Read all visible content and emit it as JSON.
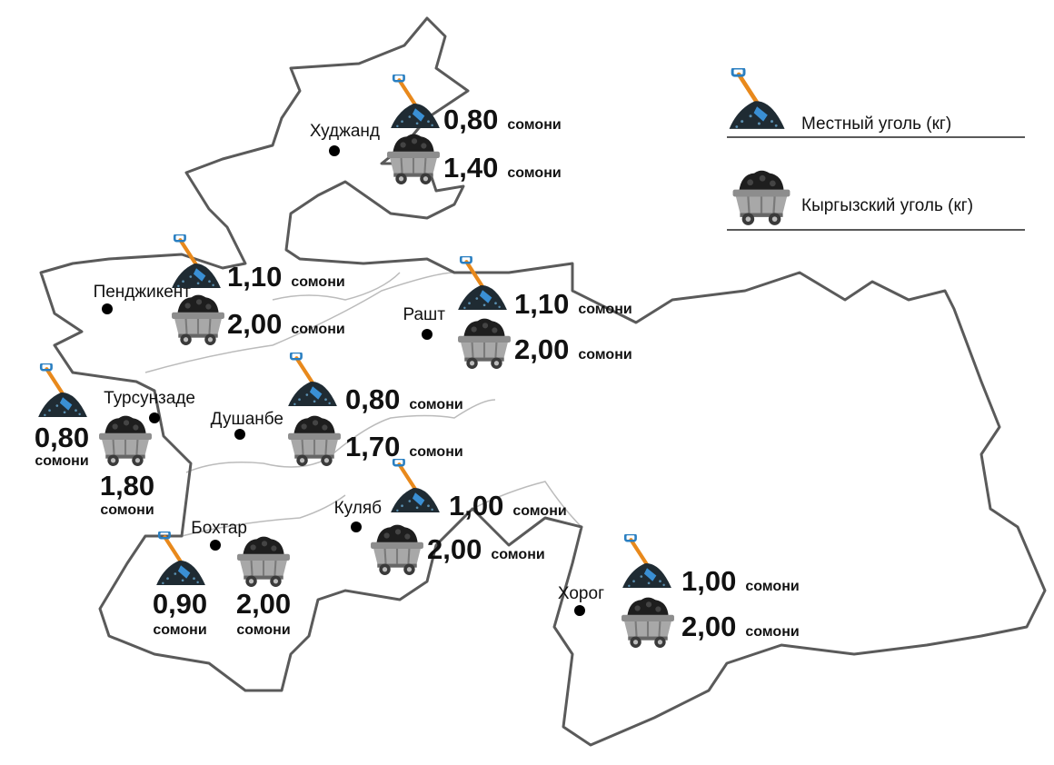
{
  "legend": {
    "local": "Местный уголь (кг)",
    "kyrgyz": "Кыргызский уголь (кг)"
  },
  "cities": [
    {
      "name": "Худжанд",
      "local": {
        "price": "0,80",
        "unit": "сомони"
      },
      "kyrgyz": {
        "price": "1,40",
        "unit": "сомони"
      }
    },
    {
      "name": "Пенджикент",
      "local": {
        "price": "1,10",
        "unit": "сомони"
      },
      "kyrgyz": {
        "price": "2,00",
        "unit": "сомони"
      }
    },
    {
      "name": "Рашт",
      "local": {
        "price": "1,10",
        "unit": "сомони"
      },
      "kyrgyz": {
        "price": "2,00",
        "unit": "сомони"
      }
    },
    {
      "name": "Турсунзаде",
      "local": {
        "price": "0,80",
        "unit": "сомони"
      },
      "kyrgyz": {
        "price": "1,80",
        "unit": "сомони"
      }
    },
    {
      "name": "Душанбе",
      "local": {
        "price": "0,80",
        "unit": "сомони"
      },
      "kyrgyz": {
        "price": "1,70",
        "unit": "сомони"
      }
    },
    {
      "name": "Куляб",
      "local": {
        "price": "1,00",
        "unit": "сомони"
      },
      "kyrgyz": {
        "price": "2,00",
        "unit": "сомони"
      }
    },
    {
      "name": "Бохтар",
      "local": {
        "price": "0,90",
        "unit": "сомони"
      },
      "kyrgyz": {
        "price": "2,00",
        "unit": "сомони"
      }
    },
    {
      "name": "Хорог",
      "local": {
        "price": "1,00",
        "unit": "сомони"
      },
      "kyrgyz": {
        "price": "2,00",
        "unit": "сомони"
      }
    }
  ]
}
